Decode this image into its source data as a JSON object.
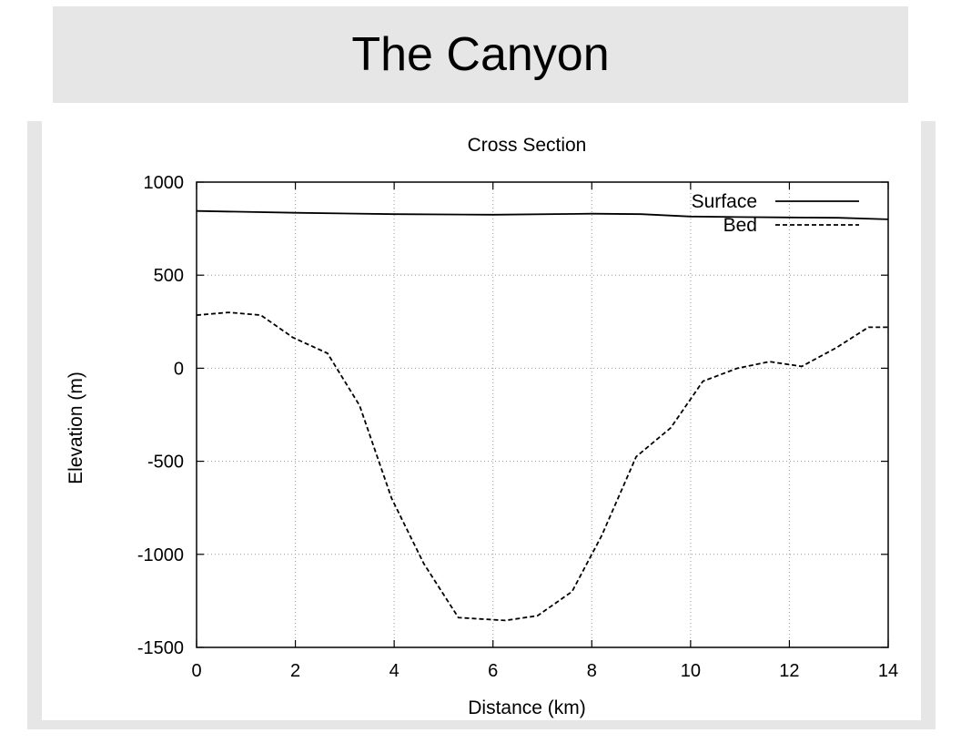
{
  "page_title": "The Canyon",
  "chart_data": {
    "type": "line",
    "title": "Cross Section",
    "xlabel": "Distance (km)",
    "ylabel": "Elevation (m)",
    "xlim": [
      0,
      14
    ],
    "ylim": [
      -1500,
      1000
    ],
    "xticks": [
      0,
      2,
      4,
      6,
      8,
      10,
      12,
      14
    ],
    "yticks": [
      1000,
      500,
      0,
      -500,
      -1000,
      -1500
    ],
    "grid": true,
    "legend_position": "top-right",
    "series": [
      {
        "name": "Surface",
        "style": "solid",
        "color": "#000000",
        "x": [
          0,
          2,
          4,
          6,
          8,
          9,
          10,
          11,
          12,
          13,
          14
        ],
        "y": [
          845,
          835,
          828,
          825,
          830,
          828,
          815,
          812,
          810,
          808,
          800
        ]
      },
      {
        "name": "Bed",
        "style": "dashed",
        "color": "#000000",
        "x": [
          0,
          0.65,
          1.3,
          1.95,
          2.65,
          3.3,
          3.95,
          4.6,
          5.3,
          6.25,
          6.9,
          7.6,
          8.2,
          8.9,
          9.6,
          10.25,
          10.95,
          11.6,
          12.25,
          12.95,
          13.6,
          14
        ],
        "y": [
          285,
          300,
          285,
          165,
          80,
          -200,
          -700,
          -1050,
          -1340,
          -1355,
          -1330,
          -1200,
          -900,
          -475,
          -320,
          -70,
          0,
          35,
          10,
          110,
          220,
          220
        ]
      }
    ]
  }
}
